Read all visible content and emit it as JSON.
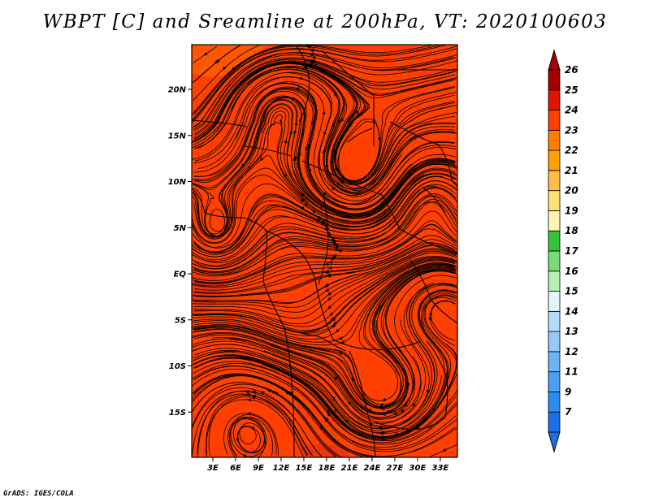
{
  "title": "WBPT [C] and Sreamline at 200hPa, VT: 2020100603",
  "credit": "GrADS: IGES/COLA",
  "map": {
    "fill_color": "#ff4000",
    "warm_patch_color": "#e83210",
    "latitude_labels": [
      {
        "label": "20N",
        "value": 20
      },
      {
        "label": "15N",
        "value": 15
      },
      {
        "label": "10N",
        "value": 10
      },
      {
        "label": "5N",
        "value": 5
      },
      {
        "label": "EQ",
        "value": 0
      },
      {
        "label": "5S",
        "value": -5
      },
      {
        "label": "10S",
        "value": -10
      },
      {
        "label": "15S",
        "value": -15
      }
    ],
    "longitude_labels": [
      {
        "label": "3E",
        "value": 3
      },
      {
        "label": "6E",
        "value": 6
      },
      {
        "label": "9E",
        "value": 9
      },
      {
        "label": "12E",
        "value": 12
      },
      {
        "label": "15E",
        "value": 15
      },
      {
        "label": "18E",
        "value": 18
      },
      {
        "label": "21E",
        "value": 21
      },
      {
        "label": "24E",
        "value": 24
      },
      {
        "label": "27E",
        "value": 27
      },
      {
        "label": "30E",
        "value": 30
      },
      {
        "label": "33E",
        "value": 33
      }
    ]
  },
  "colorbar": {
    "levels": [
      {
        "label": "7",
        "color": "#1e6ee6"
      },
      {
        "label": "9",
        "color": "#2e8cf0"
      },
      {
        "label": "11",
        "color": "#4ba0f2"
      },
      {
        "label": "12",
        "color": "#6eb4f5"
      },
      {
        "label": "13",
        "color": "#96c8f8"
      },
      {
        "label": "14",
        "color": "#b4dcfa"
      },
      {
        "label": "15",
        "color": "#e6f5fa"
      },
      {
        "label": "16",
        "color": "#b4f0b4"
      },
      {
        "label": "17",
        "color": "#78dc78"
      },
      {
        "label": "18",
        "color": "#37c337"
      },
      {
        "label": "19",
        "color": "#fff5b4"
      },
      {
        "label": "20",
        "color": "#ffe178"
      },
      {
        "label": "21",
        "color": "#ffbe46"
      },
      {
        "label": "22",
        "color": "#ffa000"
      },
      {
        "label": "23",
        "color": "#ff7d00"
      },
      {
        "label": "24",
        "color": "#ff4000"
      },
      {
        "label": "25",
        "color": "#e11400"
      },
      {
        "label": "26",
        "color": "#a50000"
      }
    ],
    "below_color": "#1e6ee6",
    "above_color": "#a50000"
  }
}
